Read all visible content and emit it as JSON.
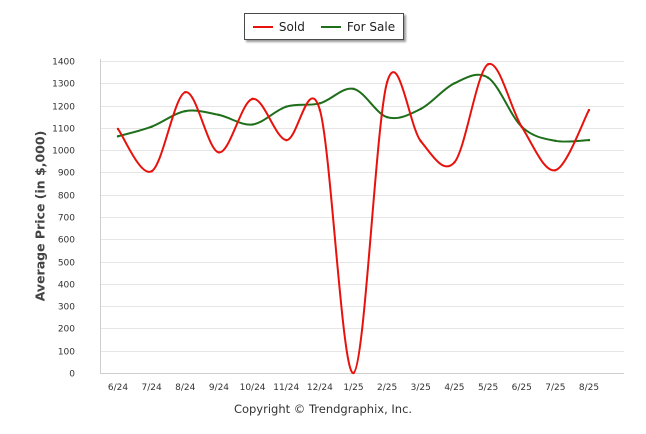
{
  "chart_data": {
    "type": "line",
    "categories": [
      "6/24",
      "7/24",
      "8/24",
      "9/24",
      "10/24",
      "11/24",
      "12/24",
      "1/25",
      "2/25",
      "3/25",
      "4/25",
      "5/25",
      "6/25",
      "7/25",
      "8/25"
    ],
    "series": [
      {
        "name": "Sold",
        "color": "#e8120c",
        "values": [
          1095,
          905,
          1260,
          990,
          1230,
          1045,
          1180,
          0,
          1305,
          1040,
          945,
          1385,
          1105,
          910,
          1180
        ]
      },
      {
        "name": "For Sale",
        "color": "#1f6e1a",
        "values": [
          1062,
          1105,
          1175,
          1158,
          1115,
          1195,
          1210,
          1275,
          1148,
          1185,
          1300,
          1325,
          1105,
          1042,
          1045
        ]
      }
    ],
    "y_ticks": [
      "0",
      "100",
      "200",
      "300",
      "400",
      "500",
      "600",
      "700",
      "800",
      "900",
      "1000",
      "1100",
      "1200",
      "1300",
      "1400"
    ],
    "ylim": [
      0,
      1400
    ],
    "ylabel": "Average Price (in $,000)",
    "xlabel": "",
    "grid": "horizontal",
    "legend_position": "top-center",
    "footer": "Copyright © Trendgraphix, Inc."
  }
}
